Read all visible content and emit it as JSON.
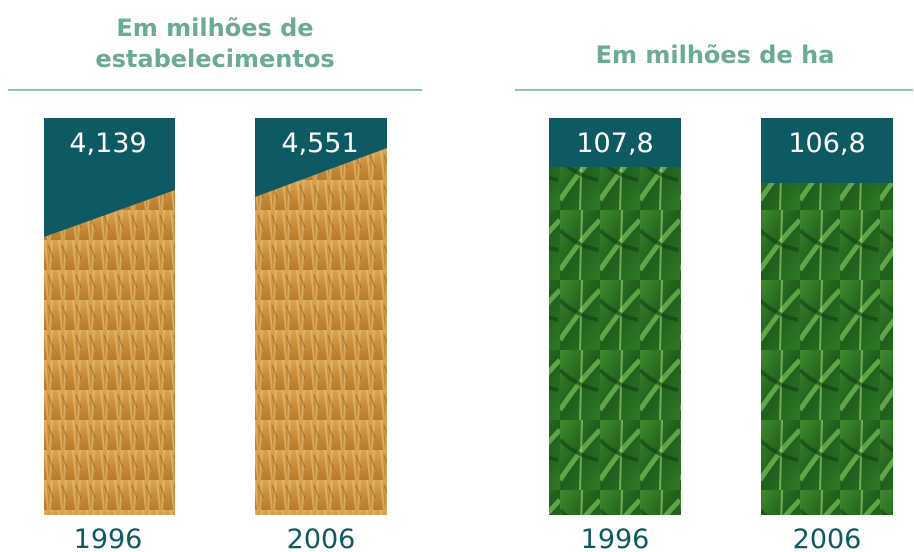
{
  "panels": [
    {
      "title": [
        "Em milhões de",
        "estabelecimentos"
      ],
      "items": [
        {
          "value": "4,139",
          "year": "1996"
        },
        {
          "value": "4,551",
          "year": "2006"
        }
      ]
    },
    {
      "title": [
        "Em milhões de ha"
      ],
      "items": [
        {
          "value": "107,8",
          "year": "1996"
        },
        {
          "value": "106,8",
          "year": "2006"
        }
      ]
    }
  ]
}
